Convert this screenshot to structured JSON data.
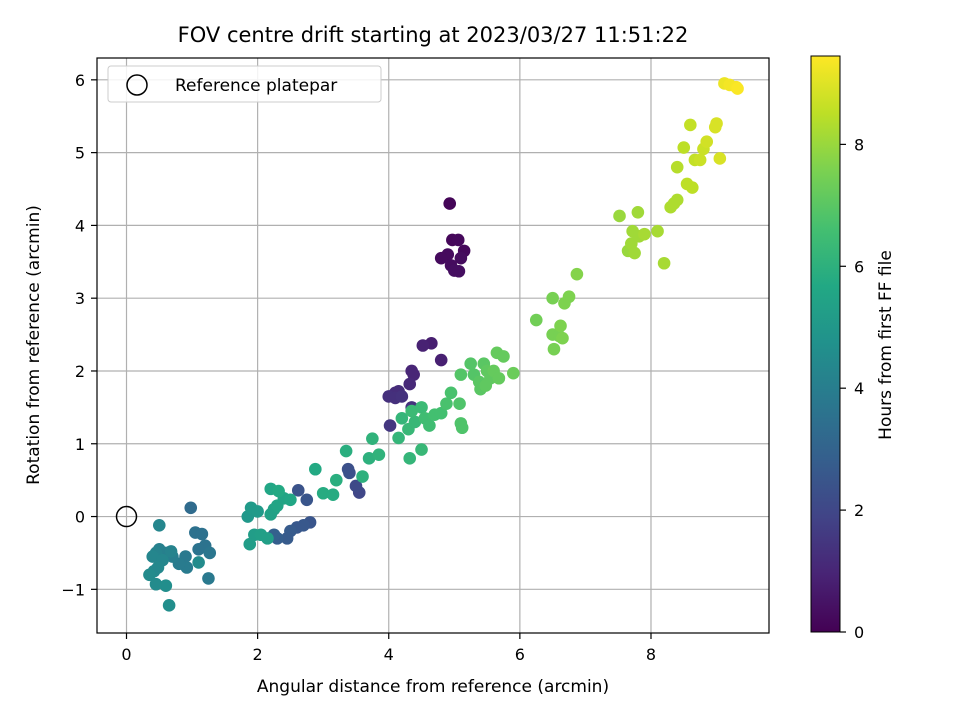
{
  "chart_data": {
    "type": "scatter",
    "title": "FOV centre drift starting at 2023/03/27 11:51:22",
    "xlabel": "Angular distance from reference (arcmin)",
    "ylabel": "Rotation from reference (arcmin)",
    "xlim": [
      -0.45,
      9.8
    ],
    "ylim": [
      -1.6,
      6.3
    ],
    "xticks": [
      0,
      2,
      4,
      6,
      8
    ],
    "yticks": [
      -1,
      0,
      1,
      2,
      3,
      4,
      5,
      6
    ],
    "grid": true,
    "legend": {
      "placement": "top-left",
      "entries": [
        "Reference platepar"
      ]
    },
    "reference_point": {
      "x": 0,
      "y": 0,
      "label": "Reference platepar"
    },
    "colorbar": {
      "label": "Hours from first FF file",
      "colormap": "viridis",
      "range": [
        0,
        9.45
      ],
      "ticks": [
        0,
        2,
        4,
        6,
        8
      ]
    },
    "points": [
      {
        "x": 4.93,
        "y": 4.3,
        "h": 0.1
      },
      {
        "x": 4.97,
        "y": 3.8,
        "h": 0.15
      },
      {
        "x": 5.06,
        "y": 3.8,
        "h": 0.2
      },
      {
        "x": 5.15,
        "y": 3.65,
        "h": 0.2
      },
      {
        "x": 4.9,
        "y": 3.6,
        "h": 0.25
      },
      {
        "x": 4.8,
        "y": 3.55,
        "h": 0.25
      },
      {
        "x": 5.1,
        "y": 3.55,
        "h": 0.3
      },
      {
        "x": 4.95,
        "y": 3.45,
        "h": 0.3
      },
      {
        "x": 5.0,
        "y": 3.38,
        "h": 0.35
      },
      {
        "x": 5.07,
        "y": 3.37,
        "h": 0.35
      },
      {
        "x": 4.65,
        "y": 2.38,
        "h": 0.8
      },
      {
        "x": 4.52,
        "y": 2.35,
        "h": 0.9
      },
      {
        "x": 4.8,
        "y": 2.15,
        "h": 0.85
      },
      {
        "x": 4.35,
        "y": 2.0,
        "h": 1.0
      },
      {
        "x": 4.38,
        "y": 1.95,
        "h": 1.0
      },
      {
        "x": 4.32,
        "y": 1.82,
        "h": 1.1
      },
      {
        "x": 4.15,
        "y": 1.72,
        "h": 1.2
      },
      {
        "x": 4.1,
        "y": 1.7,
        "h": 1.2
      },
      {
        "x": 4.0,
        "y": 1.65,
        "h": 1.3
      },
      {
        "x": 4.1,
        "y": 1.63,
        "h": 1.3
      },
      {
        "x": 4.2,
        "y": 1.65,
        "h": 1.35
      },
      {
        "x": 4.35,
        "y": 1.5,
        "h": 1.4
      },
      {
        "x": 4.02,
        "y": 1.25,
        "h": 1.5
      },
      {
        "x": 3.55,
        "y": 0.33,
        "h": 2.0
      },
      {
        "x": 3.5,
        "y": 0.42,
        "h": 2.1
      },
      {
        "x": 3.4,
        "y": 0.6,
        "h": 2.3
      },
      {
        "x": 3.38,
        "y": 0.65,
        "h": 2.3
      },
      {
        "x": 2.62,
        "y": 0.36,
        "h": 2.4
      },
      {
        "x": 2.75,
        "y": 0.23,
        "h": 2.5
      },
      {
        "x": 2.8,
        "y": -0.08,
        "h": 2.5
      },
      {
        "x": 2.7,
        "y": -0.12,
        "h": 2.6
      },
      {
        "x": 2.6,
        "y": -0.15,
        "h": 2.6
      },
      {
        "x": 2.5,
        "y": -0.2,
        "h": 2.7
      },
      {
        "x": 2.45,
        "y": -0.3,
        "h": 2.7
      },
      {
        "x": 2.3,
        "y": -0.3,
        "h": 2.8
      },
      {
        "x": 2.25,
        "y": -0.25,
        "h": 2.9
      },
      {
        "x": 0.98,
        "y": 0.12,
        "h": 3.3
      },
      {
        "x": 1.05,
        "y": -0.22,
        "h": 3.5
      },
      {
        "x": 1.15,
        "y": -0.24,
        "h": 3.5
      },
      {
        "x": 1.2,
        "y": -0.4,
        "h": 3.6
      },
      {
        "x": 1.1,
        "y": -0.45,
        "h": 3.6
      },
      {
        "x": 1.27,
        "y": -0.5,
        "h": 3.7
      },
      {
        "x": 1.25,
        "y": -0.85,
        "h": 3.8
      },
      {
        "x": 0.9,
        "y": -0.55,
        "h": 3.8
      },
      {
        "x": 0.92,
        "y": -0.7,
        "h": 3.9
      },
      {
        "x": 0.8,
        "y": -0.65,
        "h": 3.9
      },
      {
        "x": 0.7,
        "y": -0.55,
        "h": 4.0
      },
      {
        "x": 0.6,
        "y": -0.5,
        "h": 4.0
      },
      {
        "x": 0.5,
        "y": -0.45,
        "h": 4.1
      },
      {
        "x": 0.45,
        "y": -0.5,
        "h": 4.2
      },
      {
        "x": 0.4,
        "y": -0.55,
        "h": 4.3
      },
      {
        "x": 0.55,
        "y": -0.6,
        "h": 4.3
      },
      {
        "x": 0.48,
        "y": -0.7,
        "h": 4.4
      },
      {
        "x": 0.42,
        "y": -0.75,
        "h": 4.4
      },
      {
        "x": 0.35,
        "y": -0.8,
        "h": 4.5
      },
      {
        "x": 0.45,
        "y": -0.93,
        "h": 4.5
      },
      {
        "x": 0.6,
        "y": -0.95,
        "h": 4.6
      },
      {
        "x": 0.65,
        "y": -1.22,
        "h": 4.6
      },
      {
        "x": 0.5,
        "y": -0.12,
        "h": 4.3
      },
      {
        "x": 0.68,
        "y": -0.48,
        "h": 4.2
      },
      {
        "x": 1.1,
        "y": -0.63,
        "h": 4.5
      },
      {
        "x": 1.85,
        "y": 0.0,
        "h": 5.0
      },
      {
        "x": 1.9,
        "y": 0.12,
        "h": 5.1
      },
      {
        "x": 2.0,
        "y": 0.07,
        "h": 5.1
      },
      {
        "x": 1.95,
        "y": -0.25,
        "h": 5.2
      },
      {
        "x": 1.88,
        "y": -0.38,
        "h": 5.2
      },
      {
        "x": 2.05,
        "y": -0.25,
        "h": 5.3
      },
      {
        "x": 2.15,
        "y": -0.3,
        "h": 5.3
      },
      {
        "x": 2.2,
        "y": 0.03,
        "h": 5.4
      },
      {
        "x": 2.25,
        "y": 0.1,
        "h": 5.4
      },
      {
        "x": 2.3,
        "y": 0.15,
        "h": 5.5
      },
      {
        "x": 2.4,
        "y": 0.25,
        "h": 5.5
      },
      {
        "x": 2.5,
        "y": 0.23,
        "h": 5.6
      },
      {
        "x": 2.2,
        "y": 0.38,
        "h": 5.6
      },
      {
        "x": 2.32,
        "y": 0.35,
        "h": 5.7
      },
      {
        "x": 2.88,
        "y": 0.65,
        "h": 5.7
      },
      {
        "x": 3.0,
        "y": 0.32,
        "h": 5.8
      },
      {
        "x": 3.15,
        "y": 0.3,
        "h": 5.8
      },
      {
        "x": 3.2,
        "y": 0.5,
        "h": 5.9
      },
      {
        "x": 3.35,
        "y": 0.9,
        "h": 5.9
      },
      {
        "x": 3.6,
        "y": 0.55,
        "h": 6.0
      },
      {
        "x": 3.7,
        "y": 0.8,
        "h": 6.0
      },
      {
        "x": 3.75,
        "y": 1.07,
        "h": 6.1
      },
      {
        "x": 3.85,
        "y": 0.85,
        "h": 6.1
      },
      {
        "x": 4.15,
        "y": 1.08,
        "h": 6.2
      },
      {
        "x": 4.2,
        "y": 1.35,
        "h": 6.2
      },
      {
        "x": 4.3,
        "y": 1.2,
        "h": 6.3
      },
      {
        "x": 4.4,
        "y": 1.3,
        "h": 6.3
      },
      {
        "x": 4.35,
        "y": 1.45,
        "h": 6.4
      },
      {
        "x": 4.5,
        "y": 1.5,
        "h": 6.4
      },
      {
        "x": 4.55,
        "y": 1.35,
        "h": 6.5
      },
      {
        "x": 4.62,
        "y": 1.25,
        "h": 6.5
      },
      {
        "x": 4.7,
        "y": 1.4,
        "h": 6.6
      },
      {
        "x": 4.8,
        "y": 1.42,
        "h": 6.6
      },
      {
        "x": 4.88,
        "y": 1.55,
        "h": 6.7
      },
      {
        "x": 4.95,
        "y": 1.7,
        "h": 6.7
      },
      {
        "x": 4.32,
        "y": 0.8,
        "h": 6.2
      },
      {
        "x": 4.5,
        "y": 0.92,
        "h": 6.3
      },
      {
        "x": 5.08,
        "y": 1.55,
        "h": 6.8
      },
      {
        "x": 5.1,
        "y": 1.28,
        "h": 6.8
      },
      {
        "x": 5.12,
        "y": 1.22,
        "h": 6.8
      },
      {
        "x": 5.1,
        "y": 1.95,
        "h": 6.9
      },
      {
        "x": 5.25,
        "y": 2.1,
        "h": 6.9
      },
      {
        "x": 5.3,
        "y": 1.95,
        "h": 6.9
      },
      {
        "x": 5.38,
        "y": 1.85,
        "h": 7.0
      },
      {
        "x": 5.4,
        "y": 1.75,
        "h": 7.0
      },
      {
        "x": 5.45,
        "y": 2.1,
        "h": 7.0
      },
      {
        "x": 5.5,
        "y": 2.0,
        "h": 7.1
      },
      {
        "x": 5.55,
        "y": 1.9,
        "h": 7.1
      },
      {
        "x": 5.48,
        "y": 1.8,
        "h": 7.1
      },
      {
        "x": 5.6,
        "y": 2.0,
        "h": 7.2
      },
      {
        "x": 5.65,
        "y": 2.25,
        "h": 7.2
      },
      {
        "x": 5.75,
        "y": 2.2,
        "h": 7.2
      },
      {
        "x": 5.68,
        "y": 1.9,
        "h": 7.2
      },
      {
        "x": 5.9,
        "y": 1.97,
        "h": 7.3
      },
      {
        "x": 6.25,
        "y": 2.7,
        "h": 7.4
      },
      {
        "x": 6.5,
        "y": 3.0,
        "h": 7.5
      },
      {
        "x": 6.5,
        "y": 2.5,
        "h": 7.5
      },
      {
        "x": 6.52,
        "y": 2.3,
        "h": 7.5
      },
      {
        "x": 6.6,
        "y": 2.48,
        "h": 7.5
      },
      {
        "x": 6.62,
        "y": 2.62,
        "h": 7.6
      },
      {
        "x": 6.65,
        "y": 2.45,
        "h": 7.6
      },
      {
        "x": 6.68,
        "y": 2.93,
        "h": 7.6
      },
      {
        "x": 6.75,
        "y": 3.02,
        "h": 7.6
      },
      {
        "x": 6.87,
        "y": 3.33,
        "h": 7.7
      },
      {
        "x": 7.52,
        "y": 4.13,
        "h": 8.0
      },
      {
        "x": 7.65,
        "y": 3.65,
        "h": 8.0
      },
      {
        "x": 7.7,
        "y": 3.75,
        "h": 8.1
      },
      {
        "x": 7.72,
        "y": 3.92,
        "h": 8.1
      },
      {
        "x": 7.8,
        "y": 4.18,
        "h": 8.1
      },
      {
        "x": 7.82,
        "y": 3.85,
        "h": 8.1
      },
      {
        "x": 7.75,
        "y": 3.62,
        "h": 8.1
      },
      {
        "x": 7.9,
        "y": 3.88,
        "h": 8.2
      },
      {
        "x": 8.1,
        "y": 3.92,
        "h": 8.2
      },
      {
        "x": 8.2,
        "y": 3.48,
        "h": 8.2
      },
      {
        "x": 8.3,
        "y": 4.25,
        "h": 8.3
      },
      {
        "x": 8.35,
        "y": 4.3,
        "h": 8.3
      },
      {
        "x": 8.4,
        "y": 4.35,
        "h": 8.3
      },
      {
        "x": 8.4,
        "y": 4.8,
        "h": 8.4
      },
      {
        "x": 8.5,
        "y": 5.07,
        "h": 8.5
      },
      {
        "x": 8.55,
        "y": 4.57,
        "h": 8.5
      },
      {
        "x": 8.63,
        "y": 4.52,
        "h": 8.5
      },
      {
        "x": 8.6,
        "y": 5.38,
        "h": 8.6
      },
      {
        "x": 8.67,
        "y": 4.9,
        "h": 8.6
      },
      {
        "x": 8.75,
        "y": 4.9,
        "h": 8.7
      },
      {
        "x": 8.8,
        "y": 5.05,
        "h": 8.7
      },
      {
        "x": 8.85,
        "y": 5.15,
        "h": 8.8
      },
      {
        "x": 8.98,
        "y": 5.35,
        "h": 8.9
      },
      {
        "x": 9.0,
        "y": 5.4,
        "h": 8.9
      },
      {
        "x": 9.05,
        "y": 4.92,
        "h": 8.9
      },
      {
        "x": 9.12,
        "y": 5.95,
        "h": 9.2
      },
      {
        "x": 9.2,
        "y": 5.93,
        "h": 9.3
      },
      {
        "x": 9.3,
        "y": 5.9,
        "h": 9.35
      },
      {
        "x": 9.32,
        "y": 5.88,
        "h": 9.4
      }
    ]
  }
}
